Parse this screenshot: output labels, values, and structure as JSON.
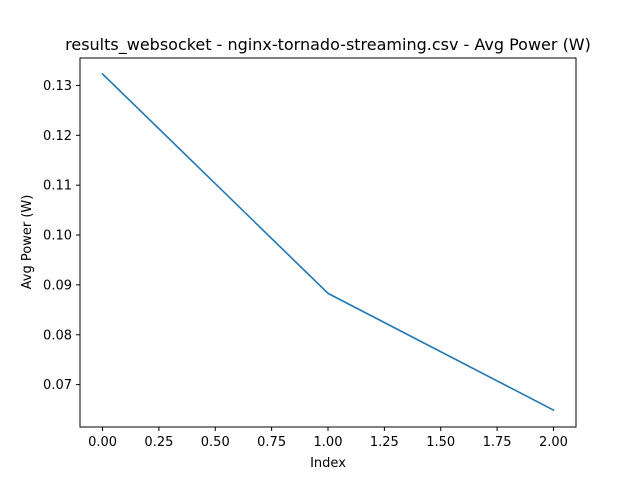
{
  "chart_data": {
    "type": "line",
    "title": "results_websocket - nginx-tornado-streaming.csv - Avg Power (W)",
    "xlabel": "Index",
    "ylabel": "Avg Power (W)",
    "xlim": [
      -0.1,
      2.1
    ],
    "ylim": [
      0.0615,
      0.1355
    ],
    "x_ticks": [
      0.0,
      0.25,
      0.5,
      0.75,
      1.0,
      1.25,
      1.5,
      1.75,
      2.0
    ],
    "x_tick_labels": [
      "0.00",
      "0.25",
      "0.50",
      "0.75",
      "1.00",
      "1.25",
      "1.50",
      "1.75",
      "2.00"
    ],
    "y_ticks": [
      0.07,
      0.08,
      0.09,
      0.1,
      0.11,
      0.12,
      0.13
    ],
    "y_tick_labels": [
      "0.07",
      "0.08",
      "0.09",
      "0.10",
      "0.11",
      "0.12",
      "0.13"
    ],
    "grid": false,
    "series": [
      {
        "x": [
          0,
          1,
          2
        ],
        "values": [
          0.1323,
          0.0883,
          0.0649
        ],
        "color": "#1f77b4"
      }
    ]
  }
}
